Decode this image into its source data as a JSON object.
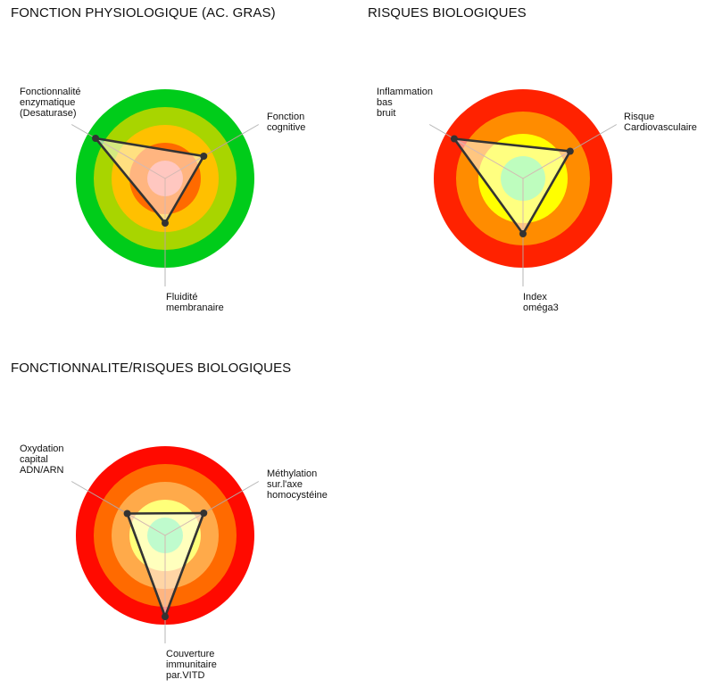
{
  "chart_data": [
    {
      "type": "radar",
      "title": "FONCTION PHYSIOLOGIQUE (AC. GRAS)",
      "title_pos": [
        12,
        6
      ],
      "center": [
        185,
        200
      ],
      "radius": 100,
      "rings": [
        {
          "r": 1.0,
          "color": "#00cc1a"
        },
        {
          "r": 0.8,
          "color": "#a8d500"
        },
        {
          "r": 0.6,
          "color": "#ffc000"
        },
        {
          "r": 0.4,
          "color": "#ff6a00"
        },
        {
          "r": 0.2,
          "color": "#ff8f80"
        }
      ],
      "axes": [
        {
          "label": "Fonctionnalité\nenzymatique\n(Desaturase)",
          "angle": 150,
          "value": 0.9,
          "label_pos": [
            22,
            97
          ]
        },
        {
          "label": "Fonction\ncognitive",
          "angle": 30,
          "value": 0.5,
          "label_pos": [
            299,
            125
          ]
        },
        {
          "label": "Fluidité\nmembranaire",
          "angle": 270,
          "value": 0.5,
          "label_pos": [
            186,
            327
          ]
        }
      ]
    },
    {
      "type": "radar",
      "title": "RISQUES BIOLOGIQUES",
      "title_pos": [
        412,
        6
      ],
      "center": [
        586,
        200
      ],
      "radius": 100,
      "rings": [
        {
          "r": 1.0,
          "color": "#ff2200"
        },
        {
          "r": 0.75,
          "color": "#ff8c00"
        },
        {
          "r": 0.5,
          "color": "#ffff00"
        },
        {
          "r": 0.25,
          "color": "#7cfa7c"
        }
      ],
      "axes": [
        {
          "label": "Inflammation\nbas\nbruit",
          "angle": 150,
          "value": 0.89,
          "label_pos": [
            422,
            97
          ]
        },
        {
          "label": "Risque\nCardiovasculaire",
          "angle": 30,
          "value": 0.61,
          "label_pos": [
            699,
            125
          ]
        },
        {
          "label": "Index\noméga3",
          "angle": 270,
          "value": 0.62,
          "label_pos": [
            586,
            327
          ]
        }
      ]
    },
    {
      "type": "radar",
      "title": "FONCTIONNALITE/RISQUES BIOLOGIQUES",
      "title_pos": [
        12,
        404
      ],
      "center": [
        185,
        600
      ],
      "radius": 100,
      "rings": [
        {
          "r": 1.0,
          "color": "#ff0a00"
        },
        {
          "r": 0.8,
          "color": "#ff6a00"
        },
        {
          "r": 0.6,
          "color": "#ffaa4a"
        },
        {
          "r": 0.4,
          "color": "#ffff7a"
        },
        {
          "r": 0.2,
          "color": "#7ff79a"
        }
      ],
      "axes": [
        {
          "label": "Oxydation\ncapital\nADN/ARN",
          "angle": 150,
          "value": 0.49,
          "label_pos": [
            22,
            497
          ]
        },
        {
          "label": "Méthylation\nsur.l'axe\nhomocystéine",
          "angle": 30,
          "value": 0.5,
          "label_pos": [
            299,
            525
          ]
        },
        {
          "label": "Couverture\nimmunitaire\npar.VITD",
          "angle": 270,
          "value": 0.91,
          "label_pos": [
            186,
            727
          ]
        }
      ]
    }
  ]
}
